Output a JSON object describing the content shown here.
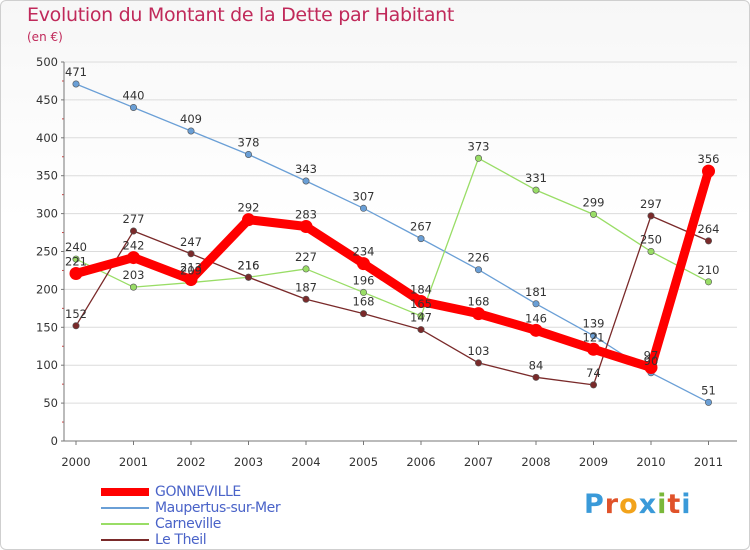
{
  "header": {
    "title": "Evolution du Montant de la Dette par Habitant",
    "subtitle": "(en €)"
  },
  "logo": {
    "text": "Proxiti",
    "colors": [
      "#3a9ad9",
      "#e0522a",
      "#f2a31b",
      "#3a9ad9",
      "#7ab83a",
      "#e0522a",
      "#3a9ad9"
    ]
  },
  "chart_data": {
    "type": "line",
    "title": "Evolution du Montant de la Dette par Habitant",
    "subtitle": "(en €)",
    "xlabel": "",
    "ylabel": "",
    "x": [
      "2000",
      "2001",
      "2002",
      "2003",
      "2004",
      "2005",
      "2006",
      "2007",
      "2008",
      "2009",
      "2010",
      "2011"
    ],
    "ylim": [
      0,
      500
    ],
    "yticks": [
      0,
      50,
      100,
      150,
      200,
      250,
      300,
      350,
      400,
      450,
      500
    ],
    "grid": "horizontal",
    "legend_position": "bottom-left",
    "series": [
      {
        "name": "GONNEVILLE",
        "color": "#ff0000",
        "emphasis": true,
        "values": [
          221,
          242,
          213,
          292,
          283,
          234,
          184,
          168,
          146,
          121,
          97,
          356
        ],
        "labels": [
          "221",
          "242",
          "213",
          "292",
          "283",
          "234",
          "184",
          "168",
          "146",
          "121",
          "97",
          "356"
        ]
      },
      {
        "name": "Maupertus-sur-Mer",
        "color": "#6a9fd6",
        "values": [
          471,
          440,
          409,
          378,
          343,
          307,
          267,
          226,
          181,
          139,
          90,
          51
        ],
        "labels": [
          "471",
          "440",
          "409",
          "378",
          "343",
          "307",
          "267",
          "226",
          "181",
          "139",
          "90",
          "51"
        ]
      },
      {
        "name": "Carneville",
        "color": "#99dd66",
        "values": [
          240,
          203,
          209,
          216,
          227,
          196,
          165,
          373,
          331,
          299,
          250,
          210
        ],
        "labels": [
          "240",
          "203",
          "209",
          "216",
          "227",
          "196",
          "165",
          "373",
          "331",
          "299",
          "250",
          "210"
        ]
      },
      {
        "name": "Le Theil",
        "color": "#7a2a2a",
        "values": [
          152,
          277,
          247,
          216,
          187,
          168,
          147,
          103,
          84,
          74,
          297,
          264
        ],
        "labels": [
          "152",
          "277",
          "247",
          "216",
          "187",
          "168",
          "147",
          "103",
          "84",
          "74",
          "297",
          "264"
        ]
      }
    ]
  }
}
